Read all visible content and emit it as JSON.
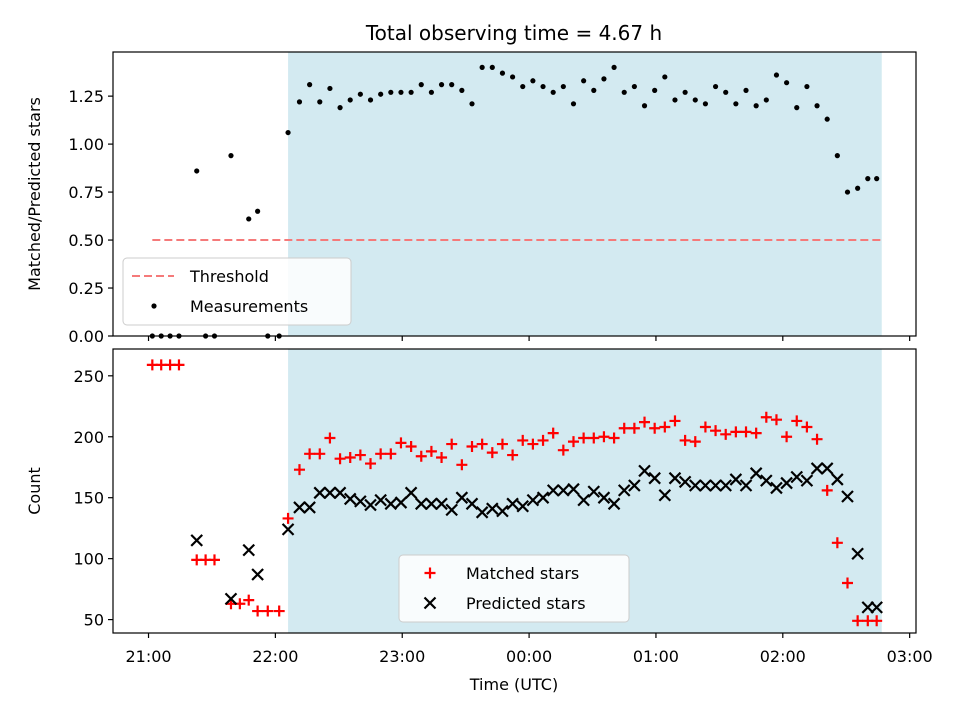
{
  "chart_data": {
    "title": "Total observing time = 4.67 h",
    "xlabel": "Time (UTC)",
    "x_unit": "hours UTC (21.0 = 21:00, 24.0 = 00:00, 27.0 = 03:00 next day)",
    "x_tick_labels": [
      "21:00",
      "22:00",
      "23:00",
      "00:00",
      "01:00",
      "02:00",
      "03:00"
    ],
    "x_ticks": [
      21,
      22,
      23,
      24,
      25,
      26,
      27
    ],
    "xlim": [
      20.72,
      27.05
    ],
    "observing_window": {
      "start": 22.1,
      "end": 26.78,
      "color": "#d3eaf1"
    },
    "panels": [
      {
        "type": "scatter",
        "ylabel": "Matched/Predicted stars",
        "ylim": [
          0,
          1.48
        ],
        "y_ticks": [
          0.0,
          0.25,
          0.5,
          0.75,
          1.0,
          1.25
        ],
        "y_tick_labels": [
          "0.00",
          "0.25",
          "0.50",
          "0.75",
          "1.00",
          "1.25"
        ],
        "threshold": {
          "name": "Threshold",
          "value": 0.5,
          "x_range": [
            21.03,
            26.78
          ],
          "color": "#f57a7a"
        },
        "legend": {
          "position": "lower-left",
          "entries": [
            "Threshold",
            "Measurements"
          ]
        },
        "series": [
          {
            "name": "Measurements",
            "marker": "dot",
            "color": "#000000",
            "x": [
              21.03,
              21.1,
              21.17,
              21.24,
              21.38,
              21.45,
              21.52,
              21.65,
              21.79,
              21.86,
              21.94,
              22.03,
              22.1,
              22.19,
              22.27,
              22.35,
              22.43,
              22.51,
              22.59,
              22.67,
              22.75,
              22.83,
              22.91,
              22.99,
              23.07,
              23.15,
              23.23,
              23.31,
              23.39,
              23.47,
              23.55,
              23.63,
              23.71,
              23.79,
              23.87,
              23.95,
              24.03,
              24.11,
              24.19,
              24.27,
              24.35,
              24.43,
              24.51,
              24.59,
              24.67,
              24.75,
              24.83,
              24.91,
              24.99,
              25.07,
              25.15,
              25.23,
              25.31,
              25.39,
              25.47,
              25.55,
              25.63,
              25.71,
              25.79,
              25.87,
              25.95,
              26.03,
              26.11,
              26.19,
              26.27,
              26.35,
              26.43,
              26.51,
              26.59,
              26.67,
              26.74
            ],
            "y": [
              0.0,
              0.0,
              0.0,
              0.0,
              0.86,
              0.0,
              0.0,
              0.94,
              0.61,
              0.65,
              0.0,
              0.0,
              1.06,
              1.22,
              1.31,
              1.22,
              1.29,
              1.19,
              1.23,
              1.26,
              1.23,
              1.26,
              1.27,
              1.27,
              1.27,
              1.31,
              1.27,
              1.31,
              1.31,
              1.28,
              1.21,
              1.4,
              1.4,
              1.37,
              1.35,
              1.3,
              1.33,
              1.3,
              1.27,
              1.3,
              1.21,
              1.33,
              1.28,
              1.34,
              1.4,
              1.27,
              1.3,
              1.2,
              1.28,
              1.35,
              1.23,
              1.27,
              1.23,
              1.21,
              1.3,
              1.27,
              1.21,
              1.28,
              1.2,
              1.23,
              1.36,
              1.32,
              1.19,
              1.3,
              1.2,
              1.13,
              0.94,
              0.75,
              0.77,
              0.82,
              0.82
            ]
          }
        ]
      },
      {
        "type": "scatter",
        "ylabel": "Count",
        "ylim": [
          39,
          272
        ],
        "y_ticks": [
          50,
          100,
          150,
          200,
          250
        ],
        "y_tick_labels": [
          "50",
          "100",
          "150",
          "200",
          "250"
        ],
        "legend": {
          "position": "lower-center",
          "entries": [
            "Matched stars",
            "Predicted stars"
          ]
        },
        "series": [
          {
            "name": "Matched stars",
            "marker": "plus",
            "color": "#ff0000",
            "x": [
              21.03,
              21.1,
              21.17,
              21.24,
              21.38,
              21.45,
              21.52,
              21.65,
              21.72,
              21.79,
              21.86,
              21.94,
              22.03,
              22.1,
              22.19,
              22.27,
              22.35,
              22.43,
              22.51,
              22.59,
              22.67,
              22.75,
              22.83,
              22.91,
              22.99,
              23.07,
              23.15,
              23.23,
              23.31,
              23.39,
              23.47,
              23.55,
              23.63,
              23.71,
              23.79,
              23.87,
              23.95,
              24.03,
              24.11,
              24.19,
              24.27,
              24.35,
              24.43,
              24.51,
              24.59,
              24.67,
              24.75,
              24.83,
              24.91,
              24.99,
              25.07,
              25.15,
              25.23,
              25.31,
              25.39,
              25.47,
              25.55,
              25.63,
              25.71,
              25.79,
              25.87,
              25.95,
              26.03,
              26.11,
              26.19,
              26.27,
              26.35,
              26.43,
              26.51,
              26.59,
              26.67,
              26.74
            ],
            "y": [
              259,
              259,
              259,
              259,
              99,
              99,
              99,
              63,
              63,
              66,
              57,
              57,
              57,
              133,
              173,
              186,
              186,
              199,
              182,
              183,
              185,
              178,
              186,
              186,
              195,
              192,
              184,
              188,
              183,
              194,
              177,
              192,
              194,
              187,
              194,
              185,
              197,
              194,
              197,
              203,
              189,
              196,
              199,
              199,
              200,
              199,
              207,
              207,
              212,
              207,
              208,
              213,
              197,
              196,
              208,
              205,
              202,
              204,
              204,
              203,
              216,
              214,
              200,
              213,
              208,
              198,
              156,
              113,
              80,
              49,
              49,
              49
            ]
          },
          {
            "name": "Predicted stars",
            "marker": "x",
            "color": "#000000",
            "x": [
              21.38,
              21.65,
              21.79,
              21.86,
              22.1,
              22.19,
              22.27,
              22.35,
              22.43,
              22.51,
              22.59,
              22.67,
              22.75,
              22.83,
              22.91,
              22.99,
              23.07,
              23.15,
              23.23,
              23.31,
              23.39,
              23.47,
              23.55,
              23.63,
              23.71,
              23.79,
              23.87,
              23.95,
              24.03,
              24.11,
              24.19,
              24.27,
              24.35,
              24.43,
              24.51,
              24.59,
              24.67,
              24.75,
              24.83,
              24.91,
              24.99,
              25.07,
              25.15,
              25.23,
              25.31,
              25.39,
              25.47,
              25.55,
              25.63,
              25.71,
              25.79,
              25.87,
              25.95,
              26.03,
              26.11,
              26.19,
              26.27,
              26.35,
              26.43,
              26.51,
              26.59,
              26.67,
              26.74
            ],
            "y": [
              115,
              67,
              107,
              87,
              124,
              142,
              142,
              154,
              154,
              154,
              149,
              147,
              144,
              148,
              145,
              146,
              154,
              145,
              145,
              145,
              140,
              150,
              145,
              138,
              141,
              139,
              145,
              143,
              148,
              150,
              156,
              156,
              157,
              148,
              155,
              150,
              145,
              156,
              160,
              172,
              166,
              152,
              166,
              163,
              160,
              160,
              160,
              160,
              165,
              160,
              170,
              164,
              158,
              162,
              167,
              164,
              174,
              174,
              165,
              151,
              104,
              60,
              60
            ]
          }
        ]
      }
    ]
  }
}
